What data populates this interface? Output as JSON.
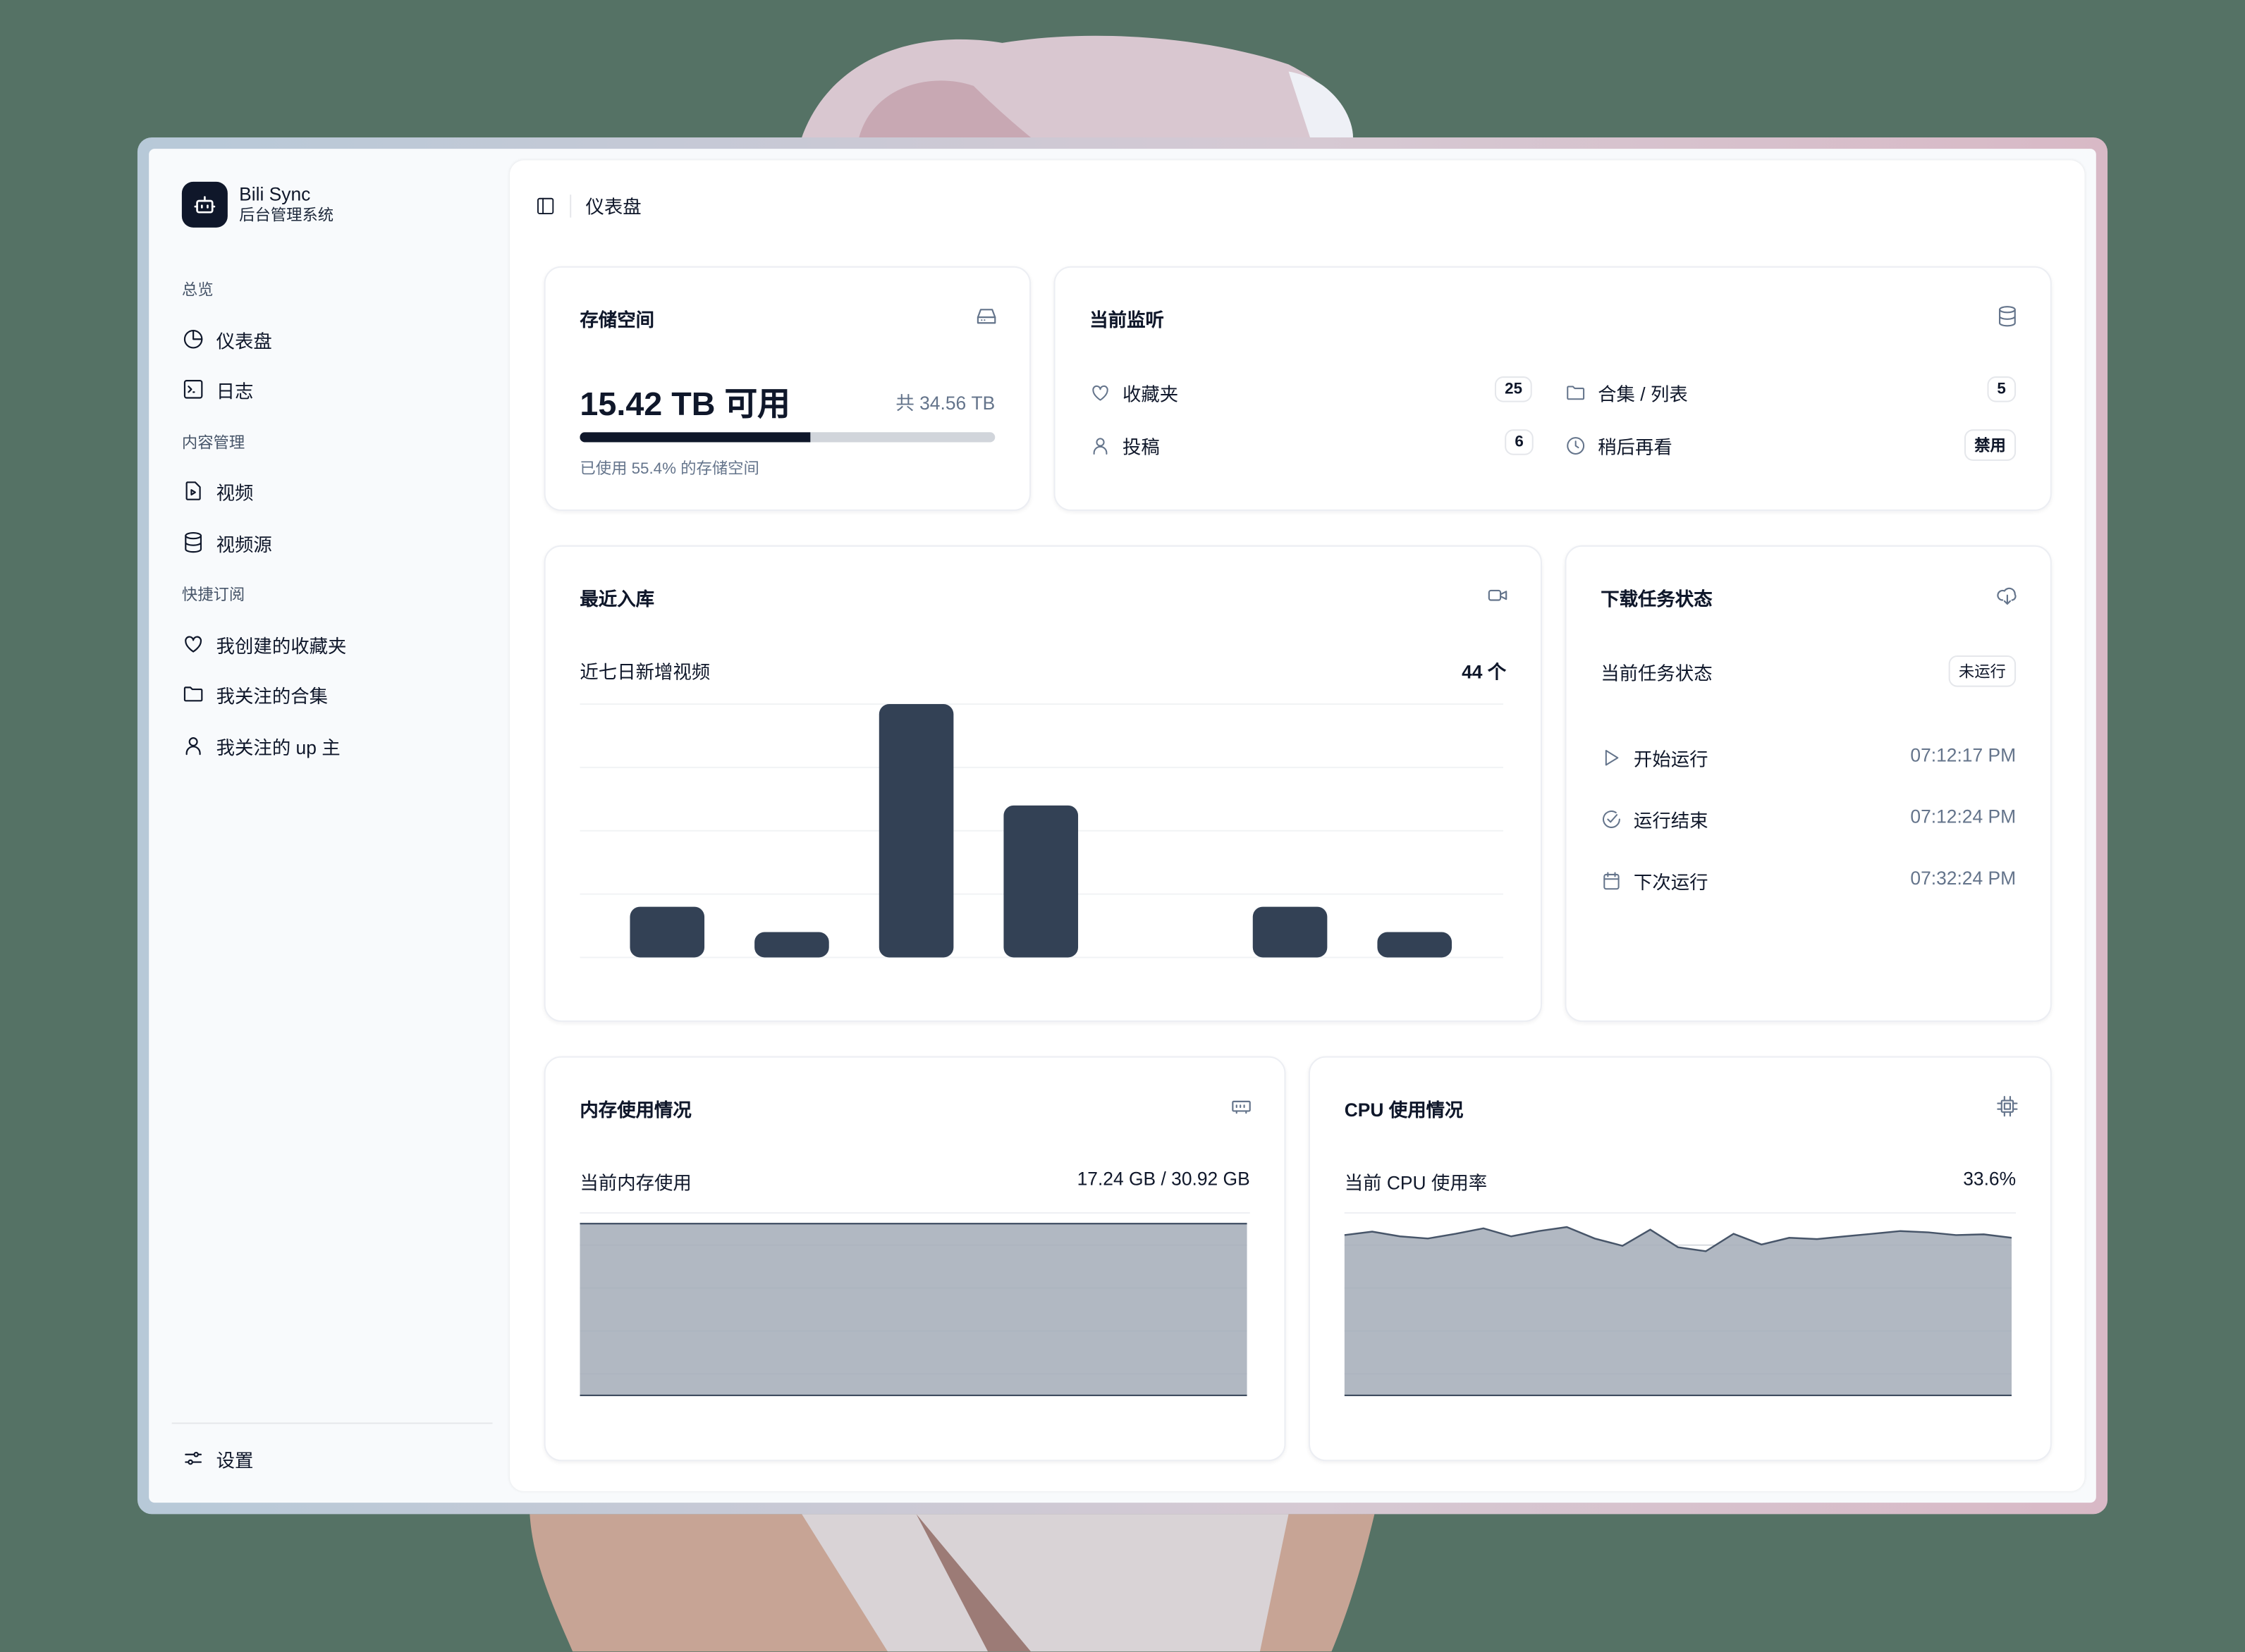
{
  "app": {
    "name": "Bili Sync",
    "subtitle": "后台管理系统"
  },
  "sidebar": {
    "groups": [
      {
        "label": "总览",
        "items": [
          {
            "label": "仪表盘",
            "icon": "pie-chart-icon"
          },
          {
            "label": "日志",
            "icon": "terminal-icon"
          }
        ]
      },
      {
        "label": "内容管理",
        "items": [
          {
            "label": "视频",
            "icon": "file-video-icon"
          },
          {
            "label": "视频源",
            "icon": "database-icon"
          }
        ]
      },
      {
        "label": "快捷订阅",
        "items": [
          {
            "label": "我创建的收藏夹",
            "icon": "heart-icon"
          },
          {
            "label": "我关注的合集",
            "icon": "folder-icon"
          },
          {
            "label": "我关注的 up 主",
            "icon": "user-icon"
          }
        ]
      }
    ],
    "settings": "设置"
  },
  "header": {
    "breadcrumb": "仪表盘"
  },
  "storage": {
    "title": "存储空间",
    "available": "15.42 TB 可用",
    "total": "共 34.56 TB",
    "used_percent": 55.4,
    "used_text": "已使用 55.4% 的存储空间"
  },
  "monitor": {
    "title": "当前监听",
    "items": [
      {
        "label": "收藏夹",
        "value": "25",
        "icon": "heart-icon"
      },
      {
        "label": "合集 / 列表",
        "value": "5",
        "icon": "folder-icon"
      },
      {
        "label": "投稿",
        "value": "6",
        "icon": "user-icon"
      },
      {
        "label": "稍后再看",
        "value": "禁用",
        "icon": "clock-icon"
      }
    ]
  },
  "recent": {
    "title": "最近入库",
    "subtitle": "近七日新增视频",
    "count": "44 个"
  },
  "task": {
    "title": "下载任务状态",
    "status_label": "当前任务状态",
    "status": "未运行",
    "rows": [
      {
        "label": "开始运行",
        "time": "07:12:17 PM",
        "icon": "play-icon"
      },
      {
        "label": "运行结束",
        "time": "07:12:24 PM",
        "icon": "check-circle-icon"
      },
      {
        "label": "下次运行",
        "time": "07:32:24 PM",
        "icon": "calendar-icon"
      }
    ]
  },
  "memory": {
    "title": "内存使用情况",
    "label": "当前内存使用",
    "value": "17.24 GB / 30.92 GB"
  },
  "cpu": {
    "title": "CPU 使用情况",
    "label": "当前 CPU 使用率",
    "value": "33.6%"
  },
  "colors": {
    "bar": "#334155",
    "area": "#a9b0bb",
    "progress": "#0f172a",
    "background": "#557265"
  },
  "chart_data": [
    {
      "type": "bar",
      "values": [
        4,
        2,
        20,
        12,
        0,
        4,
        2
      ],
      "ylim": [
        0,
        20
      ],
      "grid": true
    },
    {
      "type": "area",
      "values": [
        17.24,
        17.24,
        17.24,
        17.24,
        17.24,
        17.24,
        17.24,
        17.24,
        17.24,
        17.24,
        17.24,
        17.24,
        17.24,
        17.24,
        17.24,
        17.24,
        17.24,
        17.24,
        17.24,
        17.24,
        17.24,
        17.24,
        17.24,
        17.24,
        17.24
      ]
    },
    {
      "type": "area",
      "values": [
        34,
        34.5,
        33.8,
        33.5,
        34.2,
        35,
        33.8,
        34.6,
        35.2,
        33.5,
        32.4,
        34.8,
        32.2,
        31.6,
        34.2,
        32.6,
        33.6,
        33.4,
        33.8,
        34.2,
        34.6,
        34.4,
        34,
        34.1,
        33.6
      ]
    }
  ]
}
